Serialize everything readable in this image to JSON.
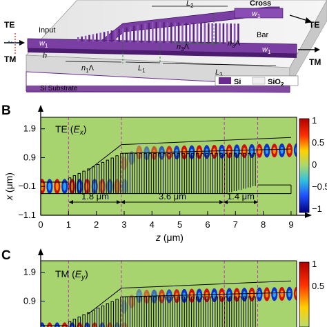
{
  "panelA": {
    "labels": {
      "input": "Input",
      "cross": "Cross",
      "bar": "Bar",
      "te": "TE",
      "tm": "TM",
      "w1": "w",
      "w1_sub": "1",
      "h": "h",
      "n1": "n",
      "n1_sub": "1",
      "lambda": "Λ",
      "L1": "L",
      "L1_sub": "1",
      "L2": "L",
      "L2_sub": "2",
      "L3": "L",
      "L3_sub": "3",
      "n3": "n",
      "n3_sub": "3",
      "si": "Si",
      "sio2": "SiO",
      "sio2_sub": "2",
      "substrate": "Si Substrate"
    },
    "colors": {
      "si": "#6a2c8e",
      "sio2": "#eeeeee",
      "arrow_red": "#d42020",
      "arrow_blue": "#2050c0"
    }
  },
  "panelB": {
    "letter": "B",
    "mode_label": "TE (",
    "field_var": "E",
    "field_sub": "x",
    "field_close": ")",
    "ylabel_var": "x",
    "ylabel_unit": " (μm)",
    "xlabel_var": "z",
    "xlabel_unit": " (μm)",
    "yticks": [
      "1.9",
      "0.9",
      "−0.1",
      "−1.1"
    ],
    "xticks": [
      "0",
      "1",
      "2",
      "3",
      "4",
      "5",
      "6",
      "7",
      "8",
      "9"
    ],
    "cbar_ticks": [
      "1",
      "0.5",
      "0",
      "−0.5",
      "−1"
    ],
    "dim_1": "1.8 μm",
    "dim_2": "3.6 μm",
    "dim_3": "1.4 μm"
  },
  "panelC": {
    "letter": "C",
    "mode_label": "TM (",
    "field_var": "E",
    "field_sub": "y",
    "field_close": ")",
    "yticks": [
      "1.9",
      "0.9"
    ],
    "cbar_ticks": [
      "1",
      "0.5"
    ]
  },
  "chart_data": [
    {
      "type": "heatmap",
      "title": "TE (Ex)",
      "xlabel": "z (μm)",
      "ylabel": "x (μm)",
      "xlim": [
        0,
        9.2
      ],
      "ylim": [
        -1.1,
        2.3
      ],
      "xticks": [
        0,
        1,
        2,
        3,
        4,
        5,
        6,
        7,
        8,
        9
      ],
      "yticks": [
        1.9,
        0.9,
        -0.1,
        -1.1
      ],
      "colorbar": {
        "min": -1,
        "max": 1,
        "ticks": [
          1,
          0.5,
          0,
          -0.5,
          -1
        ]
      },
      "section_boundaries_z": [
        1.0,
        2.9,
        6.6,
        7.8
      ],
      "annotations": [
        "1.8 μm",
        "3.6 μm",
        "1.4 μm"
      ]
    },
    {
      "type": "heatmap",
      "title": "TM (Ey)",
      "yticks": [
        1.9,
        0.9
      ],
      "colorbar": {
        "ticks": [
          1,
          0.5
        ]
      },
      "section_boundaries_z": [
        1.0,
        2.9,
        6.6,
        7.8
      ]
    }
  ]
}
